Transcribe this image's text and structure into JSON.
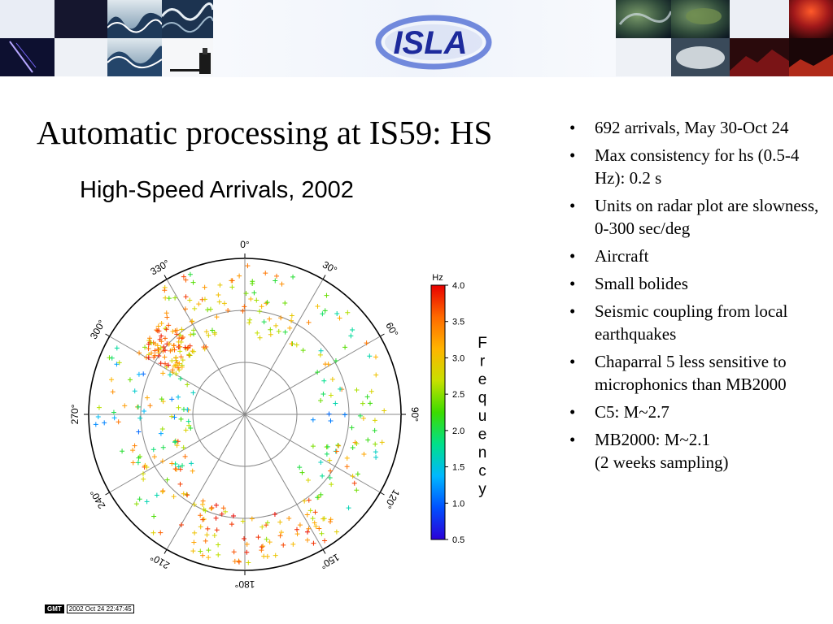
{
  "banner": {
    "logo_text": "ISLA",
    "colors": {
      "logo_blue": "#1d2a9c",
      "logo_ring": "#5b76d6",
      "banner_gradient_start": "#f5f7fb",
      "banner_gradient_end": "#e4ebf7"
    }
  },
  "slide": {
    "title": "Automatic processing at IS59: HS",
    "plot_title": "High-Speed Arrivals, 2002",
    "bullets": [
      "692 arrivals, May 30-Oct 24",
      "Max consistency for hs (0.5-4 Hz): 0.2 s",
      "Units on radar plot are slowness, 0-300 sec/deg",
      "Aircraft",
      "Small bolides",
      "Seismic coupling from local earthquakes",
      "Chaparral 5 less sensitive to microphonics than MB2000",
      "C5: M~2.7",
      "MB2000: M~2.1\n(2 weeks sampling)"
    ]
  },
  "footer": {
    "badge": "GMT",
    "timestamp": "2002 Oct 24 22:47:45"
  },
  "chart_data": {
    "type": "scatter",
    "coordinate_system": "polar",
    "title": "High-Speed Arrivals, 2002",
    "angle_unit": "degrees",
    "angle_direction": "clockwise from north",
    "angle_ticks": [
      0,
      30,
      60,
      90,
      120,
      150,
      180,
      210,
      240,
      270,
      300,
      330
    ],
    "angle_tick_labels": [
      "0°",
      "30°",
      "60°",
      "90°",
      "120°",
      "150°",
      "180°",
      "210°",
      "240°",
      "270°",
      "300°",
      "330°"
    ],
    "radial_unit": "slowness (sec/deg)",
    "radial_range": [
      0,
      300
    ],
    "radial_rings": [
      100,
      200,
      300
    ],
    "marker": "+",
    "colorbar": {
      "label": "Frequency",
      "unit_label": "Hz",
      "range": [
        0.5,
        4.0
      ],
      "ticks": [
        0.5,
        1.0,
        1.5,
        2.0,
        2.5,
        3.0,
        3.5,
        4.0
      ],
      "tick_labels": [
        "0.5",
        "1.0",
        "1.5",
        "2.0",
        "2.5",
        "3.0",
        "3.5",
        "4.0"
      ],
      "colormap": [
        "#2b00d6",
        "#0050ff",
        "#00b8ff",
        "#00e08a",
        "#3cdc00",
        "#c8e000",
        "#ffb400",
        "#ff6a00",
        "#e80000"
      ]
    },
    "clusters": [
      {
        "az_range": [
          300,
          322
        ],
        "r_range": [
          150,
          240
        ],
        "f_range": [
          2.5,
          4.0
        ],
        "count": 95
      },
      {
        "az_range": [
          322,
          340
        ],
        "r_range": [
          140,
          290
        ],
        "f_range": [
          2.0,
          3.8
        ],
        "count": 30
      },
      {
        "az_range": [
          340,
          360
        ],
        "r_range": [
          190,
          280
        ],
        "f_range": [
          2.2,
          3.6
        ],
        "count": 16
      },
      {
        "az_range": [
          0,
          30
        ],
        "r_range": [
          150,
          290
        ],
        "f_range": [
          2.0,
          3.5
        ],
        "count": 32
      },
      {
        "az_range": [
          30,
          70
        ],
        "r_range": [
          160,
          280
        ],
        "f_range": [
          1.5,
          3.5
        ],
        "count": 26
      },
      {
        "az_range": [
          70,
          100
        ],
        "r_range": [
          130,
          270
        ],
        "f_range": [
          1.0,
          3.5
        ],
        "count": 22
      },
      {
        "az_range": [
          100,
          140
        ],
        "r_range": [
          140,
          280
        ],
        "f_range": [
          1.5,
          3.8
        ],
        "count": 36
      },
      {
        "az_range": [
          140,
          180
        ],
        "r_range": [
          200,
          290
        ],
        "f_range": [
          2.5,
          4.0
        ],
        "count": 46
      },
      {
        "az_range": [
          180,
          220
        ],
        "r_range": [
          180,
          290
        ],
        "f_range": [
          2.5,
          4.0
        ],
        "count": 44
      },
      {
        "az_range": [
          220,
          255
        ],
        "r_range": [
          130,
          270
        ],
        "f_range": [
          1.5,
          3.8
        ],
        "count": 42
      },
      {
        "az_range": [
          255,
          300
        ],
        "r_range": [
          100,
          290
        ],
        "f_range": [
          1.0,
          3.5
        ],
        "count": 48
      }
    ]
  }
}
